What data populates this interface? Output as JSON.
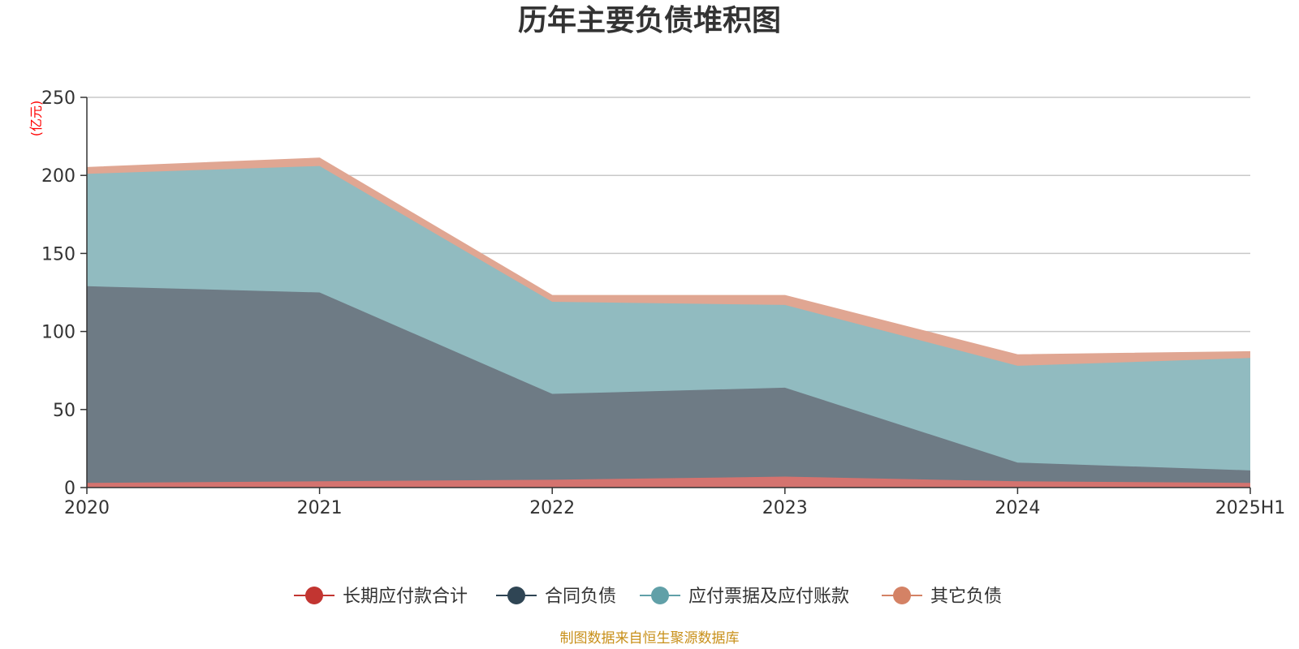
{
  "chart_data": {
    "type": "area",
    "stacked": true,
    "title": "历年主要负债堆积图",
    "unit_label": "(亿元)",
    "categories": [
      "2020",
      "2021",
      "2022",
      "2023",
      "2024",
      "2025H1"
    ],
    "ylim": [
      0,
      250
    ],
    "yticks": [
      0,
      50,
      100,
      150,
      200,
      250
    ],
    "grid": true,
    "legend_position": "bottom",
    "series": [
      {
        "name": "长期应付款合计",
        "color": "#c23531",
        "fill": "#d4736f",
        "values": [
          3,
          4,
          5,
          7,
          4,
          3
        ]
      },
      {
        "name": "合同负债",
        "color": "#2f4554",
        "fill": "#6e7b85",
        "values": [
          126,
          121,
          55,
          57,
          12,
          8
        ]
      },
      {
        "name": "应付票据及应付账款",
        "color": "#61a0a8",
        "fill": "#91bbc0",
        "values": [
          72,
          81,
          59,
          53,
          62,
          72
        ]
      },
      {
        "name": "其它负债",
        "color": "#d48265",
        "fill": "#e0a692",
        "values": [
          4,
          5,
          4,
          6,
          7,
          4
        ]
      }
    ],
    "source_note": "制图数据来自恒生聚源数据库",
    "source_color": "#c8901a",
    "unit_color": "#ff0000"
  }
}
